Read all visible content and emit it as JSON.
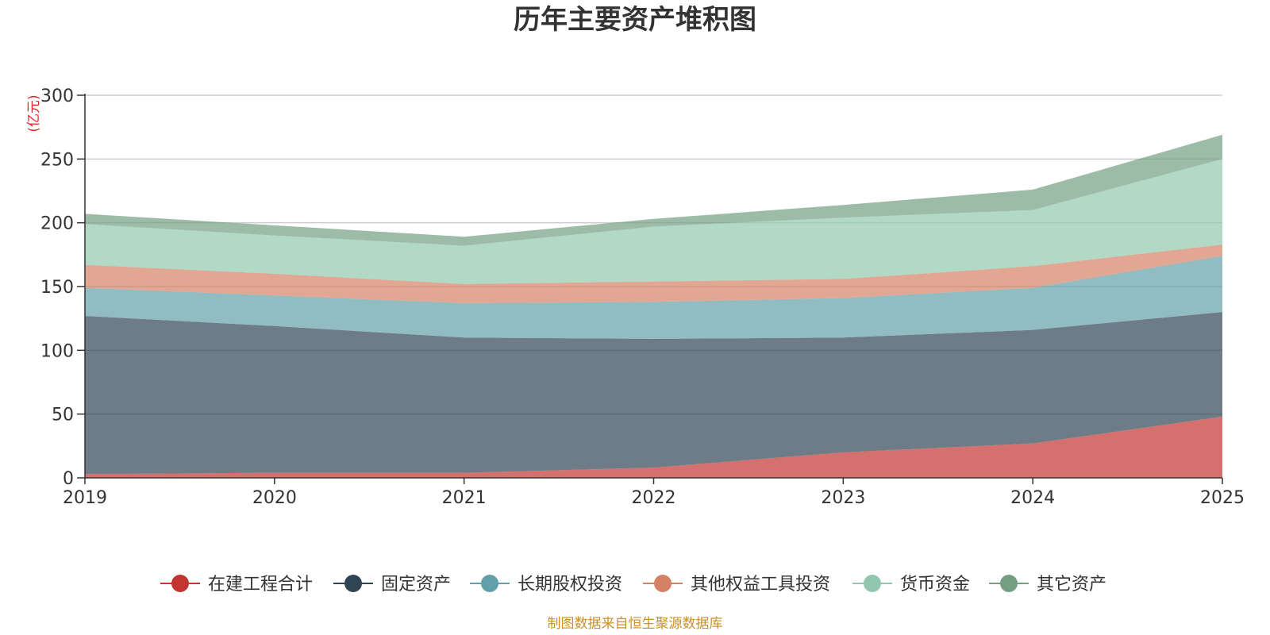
{
  "chart_data": {
    "type": "area",
    "stacked": true,
    "title": "历年主要资产堆积图",
    "ylabel": "(亿元)",
    "xlabel": "",
    "ylim": [
      0,
      300
    ],
    "yticks": [
      0,
      50,
      100,
      150,
      200,
      250,
      300
    ],
    "grid": true,
    "legend_position": "bottom",
    "categories": [
      "2019",
      "2020",
      "2021",
      "2022",
      "2023",
      "2024",
      "2025"
    ],
    "series": [
      {
        "name": "在建工程合计",
        "color": "#c23531",
        "values": [
          3,
          4,
          4,
          8,
          20,
          27,
          48
        ]
      },
      {
        "name": "固定资产",
        "color": "#2f4554",
        "values": [
          124,
          115,
          106,
          101,
          90,
          89,
          82
        ]
      },
      {
        "name": "长期股权投资",
        "color": "#61a0a8",
        "values": [
          22,
          24,
          27,
          29,
          31,
          33,
          44
        ]
      },
      {
        "name": "其他权益工具投资",
        "color": "#d48265",
        "values": [
          18,
          17,
          15,
          16,
          15,
          17,
          9
        ]
      },
      {
        "name": "货币资金",
        "color": "#91c7ae",
        "values": [
          32,
          30,
          30,
          43,
          48,
          44,
          67
        ]
      },
      {
        "name": "其它资产",
        "color": "#749f83",
        "values": [
          8,
          8,
          7,
          6,
          10,
          16,
          19
        ]
      }
    ],
    "source_note": "制图数据来自恒生聚源数据库"
  }
}
